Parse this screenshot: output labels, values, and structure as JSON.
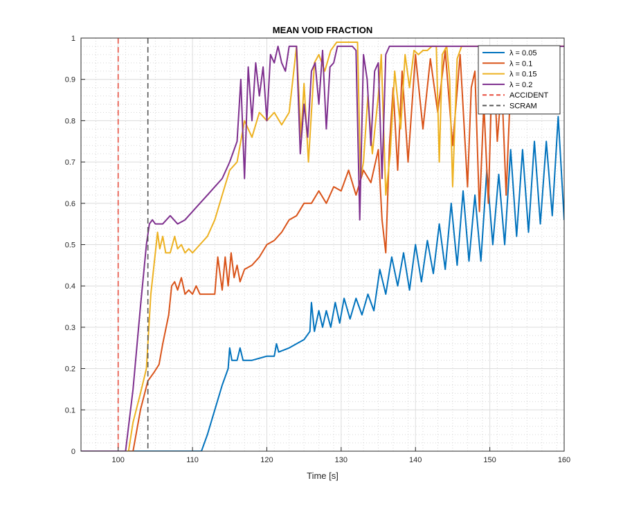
{
  "chart_data": {
    "type": "line",
    "title": "MEAN VOID FRACTION",
    "xlabel": "Time [s]",
    "ylabel": "",
    "xlim": [
      95,
      160
    ],
    "ylim": [
      0,
      1
    ],
    "x_ticks": [
      100,
      110,
      120,
      130,
      140,
      150,
      160
    ],
    "x_tick_labels": [
      "100",
      "110",
      "120",
      "130",
      "140",
      "150",
      "160"
    ],
    "y_ticks": [
      0,
      0.1,
      0.2,
      0.3,
      0.4,
      0.5,
      0.6,
      0.7,
      0.8,
      0.9,
      1
    ],
    "y_tick_labels": [
      "0",
      "0.1",
      "0.2",
      "0.3",
      "0.4",
      "0.5",
      "0.6",
      "0.7",
      "0.8",
      "0.9",
      "1"
    ],
    "grid": "major and minor, dotted",
    "legend_position": "top-right",
    "series": [
      {
        "name": "λ = 0.05",
        "color": "#0072BD",
        "x": [
          95,
          111.2,
          112,
          113,
          114,
          114.8,
          115,
          115.3,
          116,
          116.4,
          116.8,
          118,
          120,
          121,
          121.3,
          121.6,
          123,
          125,
          125.8,
          126,
          126.4,
          127,
          127.5,
          128,
          128.6,
          129.2,
          129.8,
          130.4,
          131.2,
          132,
          132.8,
          133.6,
          134.4,
          135.2,
          136,
          136.8,
          137.6,
          138.4,
          139.2,
          140,
          140.8,
          141.6,
          142.4,
          143.2,
          144,
          144.8,
          145.6,
          146.4,
          147.2,
          148,
          148.8,
          149.6,
          150.4,
          151.2,
          152,
          152.8,
          153.6,
          154.4,
          155.2,
          156,
          156.8,
          157.6,
          158.4,
          159.2,
          160
        ],
        "y": [
          0,
          0,
          0.04,
          0.1,
          0.16,
          0.2,
          0.25,
          0.22,
          0.22,
          0.25,
          0.22,
          0.22,
          0.23,
          0.23,
          0.26,
          0.24,
          0.25,
          0.27,
          0.29,
          0.36,
          0.29,
          0.34,
          0.3,
          0.34,
          0.3,
          0.36,
          0.31,
          0.37,
          0.32,
          0.37,
          0.33,
          0.38,
          0.34,
          0.44,
          0.38,
          0.47,
          0.4,
          0.48,
          0.39,
          0.5,
          0.41,
          0.51,
          0.43,
          0.55,
          0.44,
          0.6,
          0.45,
          0.63,
          0.46,
          0.62,
          0.46,
          0.68,
          0.5,
          0.67,
          0.5,
          0.73,
          0.52,
          0.73,
          0.53,
          0.75,
          0.55,
          0.75,
          0.57,
          0.81,
          0.56
        ]
      },
      {
        "name": "λ = 0.1",
        "color": "#D95319",
        "x": [
          95,
          102,
          103,
          104,
          104.8,
          105.5,
          106,
          106.8,
          107.2,
          107.6,
          108,
          108.5,
          109,
          109.5,
          110,
          110.5,
          111,
          112,
          113,
          113.4,
          114,
          114.4,
          114.8,
          115.2,
          115.6,
          116,
          116.4,
          117,
          118,
          119,
          120,
          121,
          122,
          123,
          124,
          125,
          126,
          127,
          128,
          129,
          130,
          131,
          132,
          133,
          134,
          135,
          135.5,
          136,
          136.5,
          137,
          137.6,
          138.2,
          139,
          140,
          141,
          142,
          143,
          144,
          145,
          146,
          147,
          147.5,
          148,
          148.6,
          149.2,
          149.8,
          150.4,
          151,
          151.6,
          152.2,
          153,
          154,
          160
        ],
        "y": [
          0,
          0,
          0.1,
          0.17,
          0.19,
          0.21,
          0.26,
          0.33,
          0.4,
          0.41,
          0.39,
          0.42,
          0.38,
          0.39,
          0.38,
          0.4,
          0.38,
          0.38,
          0.38,
          0.47,
          0.39,
          0.47,
          0.4,
          0.48,
          0.42,
          0.45,
          0.41,
          0.44,
          0.45,
          0.47,
          0.5,
          0.51,
          0.53,
          0.56,
          0.57,
          0.6,
          0.6,
          0.63,
          0.6,
          0.64,
          0.63,
          0.68,
          0.62,
          0.68,
          0.65,
          0.73,
          0.56,
          0.48,
          0.74,
          0.88,
          0.68,
          0.92,
          0.7,
          0.96,
          0.78,
          0.95,
          0.82,
          0.97,
          0.74,
          0.96,
          0.64,
          0.88,
          0.92,
          0.58,
          0.84,
          0.6,
          0.98,
          0.75,
          0.89,
          0.62,
          0.98,
          0.98,
          0.98
        ]
      },
      {
        "name": "λ = 0.15",
        "color": "#EDB120",
        "x": [
          95,
          101.4,
          102,
          103,
          103.8,
          104.4,
          105,
          105.3,
          105.6,
          106,
          106.4,
          107,
          107.6,
          108,
          108.5,
          109,
          109.5,
          110,
          110.5,
          111,
          112,
          113,
          114,
          115,
          116,
          117,
          118,
          119,
          120,
          121,
          122,
          123,
          124,
          124.6,
          125,
          125.6,
          126.4,
          127,
          127.8,
          128.6,
          129.4,
          130,
          131,
          132.2,
          132.6,
          133,
          133.6,
          134.2,
          135,
          135.4,
          136,
          136.6,
          137.2,
          138,
          138.6,
          139.2,
          139.8,
          140.4,
          141,
          141.6,
          142.2,
          142.8,
          143.2,
          143.6,
          144.2,
          144.6,
          145,
          145.6,
          146.2,
          146.8,
          147.4,
          148,
          148.6,
          160
        ],
        "y": [
          0,
          0,
          0.07,
          0.14,
          0.2,
          0.38,
          0.48,
          0.53,
          0.49,
          0.52,
          0.48,
          0.48,
          0.52,
          0.49,
          0.5,
          0.48,
          0.49,
          0.48,
          0.49,
          0.5,
          0.52,
          0.56,
          0.62,
          0.68,
          0.7,
          0.8,
          0.76,
          0.82,
          0.8,
          0.82,
          0.79,
          0.82,
          0.98,
          0.76,
          0.89,
          0.7,
          0.94,
          0.96,
          0.92,
          0.97,
          0.99,
          0.99,
          0.99,
          0.99,
          0.66,
          0.7,
          0.86,
          0.72,
          0.86,
          0.96,
          0.62,
          0.72,
          0.92,
          0.78,
          0.96,
          0.88,
          0.97,
          0.96,
          0.97,
          0.97,
          0.98,
          0.98,
          0.7,
          0.96,
          0.98,
          0.9,
          0.64,
          0.95,
          0.98,
          0.98,
          0.98,
          0.98,
          0.98,
          0.98
        ]
      },
      {
        "name": "λ = 0.2",
        "color": "#7E2F8E",
        "x": [
          95,
          101,
          102,
          103,
          103.8,
          104.2,
          104.6,
          105,
          106,
          107,
          108,
          109,
          110,
          111,
          112,
          113,
          114,
          115,
          116,
          116.5,
          117,
          117.5,
          118,
          118.5,
          119,
          119.5,
          120,
          120.5,
          121,
          121.5,
          122,
          122.5,
          123,
          123.5,
          124,
          124.5,
          125,
          125.5,
          126,
          126.5,
          127,
          127.5,
          128,
          128.5,
          129,
          129.5,
          130,
          130.5,
          131,
          131.5,
          132,
          132.5,
          133,
          133.5,
          134,
          134.5,
          135,
          135.5,
          136,
          136.5,
          137,
          137.5,
          138,
          138.5,
          139,
          139.5,
          140,
          141,
          142,
          160
        ],
        "y": [
          0,
          0,
          0.15,
          0.35,
          0.5,
          0.55,
          0.56,
          0.55,
          0.55,
          0.57,
          0.55,
          0.56,
          0.58,
          0.6,
          0.62,
          0.64,
          0.66,
          0.7,
          0.75,
          0.9,
          0.66,
          0.93,
          0.8,
          0.94,
          0.86,
          0.93,
          0.8,
          0.96,
          0.94,
          0.98,
          0.94,
          0.92,
          0.98,
          0.98,
          0.98,
          0.72,
          0.84,
          0.76,
          0.92,
          0.94,
          0.84,
          0.97,
          0.78,
          0.93,
          0.94,
          0.98,
          0.98,
          0.98,
          0.98,
          0.98,
          0.97,
          0.56,
          0.96,
          0.9,
          0.74,
          0.92,
          0.94,
          0.66,
          0.96,
          0.98,
          0.98,
          0.98,
          0.98,
          0.98,
          0.98,
          0.98,
          0.98,
          0.98,
          0.98,
          0.98
        ]
      }
    ],
    "vlines": [
      {
        "name": "ACCIDENT",
        "x": 100,
        "color": "#E74C3C",
        "style": "dashed"
      },
      {
        "name": "SCRAM",
        "x": 104,
        "color": "#555555",
        "style": "dashed"
      }
    ]
  }
}
